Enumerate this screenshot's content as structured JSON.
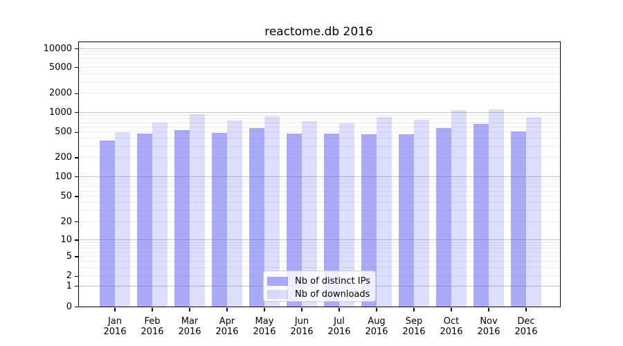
{
  "chart_data": {
    "type": "bar",
    "title": "reactome.db 2016",
    "categories": [
      "Jan",
      "Feb",
      "Mar",
      "Apr",
      "May",
      "Jun",
      "Jul",
      "Aug",
      "Sep",
      "Oct",
      "Nov",
      "Dec"
    ],
    "category_year": "2016",
    "series": [
      {
        "name": "Nb of distinct IPs",
        "color": "#5555f0",
        "fill_opacity": 0.5,
        "values": [
          368,
          473,
          540,
          483,
          570,
          476,
          470,
          457,
          460,
          582,
          671,
          513
        ]
      },
      {
        "name": "Nb of downloads",
        "color": "#5555f0",
        "fill_opacity": 0.2,
        "values": [
          501,
          698,
          935,
          755,
          865,
          738,
          685,
          846,
          780,
          1094,
          1105,
          852
        ]
      }
    ],
    "y_axis": {
      "scale": "symlog",
      "ticks": [
        0,
        1,
        2,
        5,
        10,
        20,
        50,
        100,
        200,
        500,
        1000,
        2000,
        5000,
        10000
      ],
      "tick_labels": [
        "0",
        "1",
        "2",
        "5",
        "10",
        "20",
        "50",
        "100",
        "200",
        "500",
        "1000",
        "2000",
        "5000",
        "10000"
      ]
    },
    "x_axis": {
      "tick_labels_line1": [
        "Jan",
        "Feb",
        "Mar",
        "Apr",
        "May",
        "Jun",
        "Jul",
        "Aug",
        "Sep",
        "Oct",
        "Nov",
        "Dec"
      ],
      "tick_labels_line2": [
        "2016",
        "2016",
        "2016",
        "2016",
        "2016",
        "2016",
        "2016",
        "2016",
        "2016",
        "2016",
        "2016",
        "2016"
      ]
    },
    "grid": {
      "major_color": "#c3c3c3",
      "minor_color": "#ececec",
      "on": true
    },
    "legend": {
      "position": "lower-center",
      "entries": [
        "Nb of distinct IPs",
        "Nb of downloads"
      ]
    },
    "background_color": "#ffffff"
  }
}
